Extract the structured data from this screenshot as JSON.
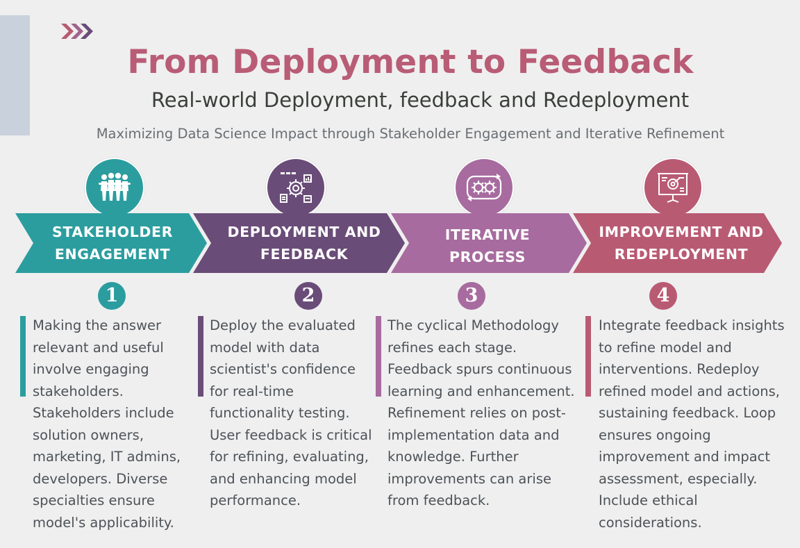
{
  "header": {
    "title": "From Deployment to Feedback",
    "subtitle": "Real-world Deployment, feedback and Redeployment",
    "tagline": "Maximizing Data Science Impact through Stakeholder Engagement and Iterative Refinement"
  },
  "colors": {
    "teal": "#2b9d9f",
    "purple": "#6a4c78",
    "magenta": "#a76b9f",
    "rose": "#b95a73",
    "title": "#b95c76"
  },
  "steps": [
    {
      "number": "1",
      "label_line1": "STAKEHOLDER",
      "label_line2": "ENGAGEMENT",
      "icon": "people-group-icon",
      "description": "Making the answer relevant and useful involve engaging stakeholders. Stakeholders include solution owners, marketing, IT admins, developers. Diverse specialties ensure model's applicability."
    },
    {
      "number": "2",
      "label_line1": "DEPLOYMENT AND",
      "label_line2": "FEEDBACK",
      "icon": "gear-workflow-icon",
      "description": "Deploy the evaluated model with data scientist's confidence for real-time functionality testing. User feedback is critical for refining, evaluating, and enhancing model performance."
    },
    {
      "number": "3",
      "label_line1": "ITERATIVE",
      "label_line2": "PROCESS",
      "icon": "cycle-gears-icon",
      "description": "The cyclical Methodology refines each stage. Feedback spurs continuous learning and enhancement. Refinement relies on post-implementation data and knowledge. Further improvements can arise from feedback."
    },
    {
      "number": "4",
      "label_line1": "IMPROVEMENT AND",
      "label_line2": "REDEPLOYMENT",
      "icon": "presentation-board-icon",
      "description": "Integrate feedback insights to refine model and interventions. Redeploy refined model and actions, sustaining feedback. Loop ensures ongoing improvement and impact assessment, especially. Include ethical considerations."
    }
  ]
}
